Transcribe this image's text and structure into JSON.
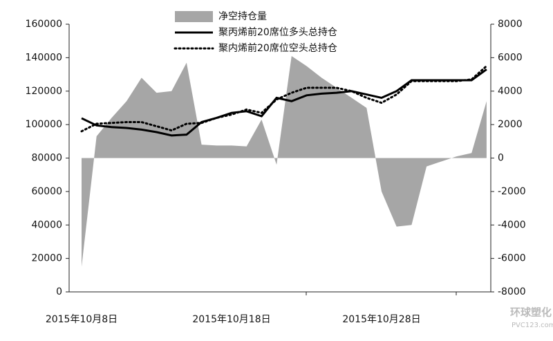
{
  "chart_data": {
    "type": "combo",
    "categories": [
      "2015年10月8日",
      null,
      null,
      null,
      null,
      null,
      null,
      null,
      null,
      null,
      "2015年10月18日",
      null,
      null,
      null,
      null,
      null,
      null,
      null,
      null,
      null,
      "2015年10月28日",
      null,
      null,
      null,
      null,
      null,
      null,
      null
    ],
    "series": [
      {
        "name": "净空持仓量",
        "type": "area",
        "axis": "y2",
        "color": "#a6a6a6",
        "values": [
          -6500,
          1300,
          2400,
          3400,
          4800,
          3900,
          4000,
          5700,
          800,
          750,
          750,
          700,
          2300,
          -400,
          6100,
          5500,
          4800,
          4200,
          3600,
          3000,
          -2000,
          -4100,
          -4000,
          -500,
          -200,
          100,
          300,
          3400
        ]
      },
      {
        "name": "聚丙烯前20席位多头总持仓",
        "type": "line",
        "dash": "solid",
        "color": "#000000",
        "values": [
          103800,
          99500,
          98500,
          98000,
          97000,
          95500,
          93500,
          94000,
          101500,
          104000,
          107000,
          108000,
          105000,
          116000,
          114000,
          117500,
          118500,
          119000,
          120000,
          118000,
          116000,
          120000,
          126500,
          126500,
          126500,
          126500,
          126500,
          133000
        ]
      },
      {
        "name": "聚内烯前20席位空头总持仓",
        "type": "line",
        "dash": "dotted",
        "color": "#000000",
        "values": [
          96000,
          100500,
          101000,
          101500,
          101500,
          99000,
          96500,
          100500,
          101000,
          104000,
          106000,
          109000,
          107000,
          115000,
          119000,
          122000,
          122000,
          122000,
          120000,
          116000,
          113000,
          118000,
          126000,
          126000,
          126000,
          126000,
          127000,
          135000
        ]
      }
    ],
    "ylim": [
      0,
      160000
    ],
    "yticks": [
      0,
      20000,
      40000,
      60000,
      80000,
      100000,
      120000,
      140000,
      160000
    ],
    "y2lim": [
      -8000,
      8000
    ],
    "y2ticks": [
      -8000,
      -6000,
      -4000,
      -2000,
      0,
      2000,
      4000,
      6000,
      8000
    ],
    "grid": false,
    "legend": "top",
    "watermark": {
      "title": "环球塑化",
      "url": "PVC123.com"
    }
  }
}
